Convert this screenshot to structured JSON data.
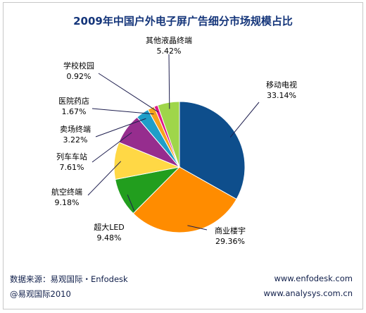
{
  "colors": {
    "title": "#14357a",
    "footer": "#0f1e4a",
    "border": "#c8c8c8",
    "leader": "#1f1f4f"
  },
  "chart_data": {
    "type": "pie",
    "title": "2009年中国户外电子屏广告细分市场规模占比",
    "start_angle_deg": 0,
    "direction": "clockwise",
    "slices": [
      {
        "label": "移动电视",
        "value": 33.14,
        "value_text": "33.14%",
        "color": "#0e4e8c"
      },
      {
        "label": "商业楼宇",
        "value": 29.36,
        "value_text": "29.36%",
        "color": "#ff8c00"
      },
      {
        "label": "超大LED",
        "value": 9.48,
        "value_text": "9.48%",
        "color": "#229e1e"
      },
      {
        "label": "航空终端",
        "value": 9.18,
        "value_text": "9.18%",
        "color": "#ffd845"
      },
      {
        "label": "列车车站",
        "value": 7.61,
        "value_text": "7.61%",
        "color": "#962d8e"
      },
      {
        "label": "卖场终端",
        "value": 3.22,
        "value_text": "3.22%",
        "color": "#1f9ec8"
      },
      {
        "label": "医院药店",
        "value": 1.67,
        "value_text": "1.67%",
        "color": "#f7a21b"
      },
      {
        "label": "学校校园",
        "value": 0.92,
        "value_text": "0.92%",
        "color": "#e0188a"
      },
      {
        "label": "其他液晶终端",
        "value": 5.42,
        "value_text": "5.42%",
        "color": "#9fd64a"
      }
    ]
  },
  "footer": {
    "source": "数据来源：易观国际・Enfodesk",
    "copyright": "@易观国际2010",
    "website1": "www.enfodesk.com",
    "website2": "www.analysys.com.cn"
  }
}
